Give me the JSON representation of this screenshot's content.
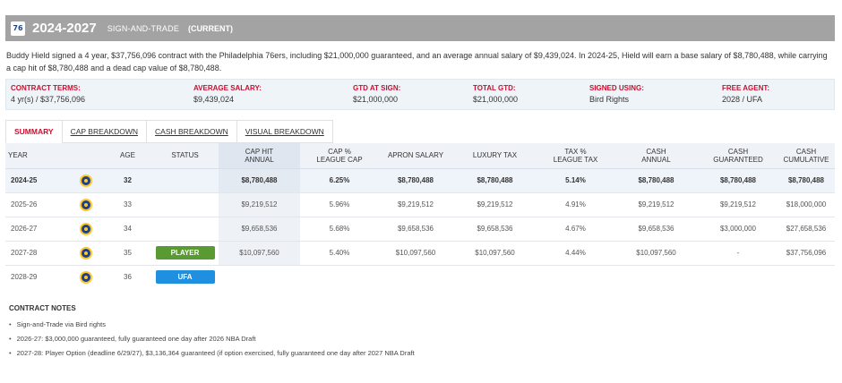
{
  "header": {
    "team_logo_text": "76",
    "years": "2024-2027",
    "type": "SIGN-AND-TRADE",
    "status": "(CURRENT)",
    "colors": {
      "bar": "#a3a3a3",
      "accent": "#c8102e"
    }
  },
  "summary": "Buddy Hield signed a 4 year, $37,756,096 contract with the Philadelphia 76ers, including $21,000,000 guaranteed, and an average annual salary of $9,439,024. In 2024-25, Hield will earn a base salary of $8,780,488, while carrying a cap hit of $8,780,488 and a dead cap value of $8,780,488.",
  "terms": [
    {
      "label": "CONTRACT TERMS:",
      "value": "4 yr(s) / $37,756,096"
    },
    {
      "label": "AVERAGE SALARY:",
      "value": "$9,439,024"
    },
    {
      "label": "GTD AT SIGN:",
      "value": "$21,000,000"
    },
    {
      "label": "TOTAL GTD:",
      "value": "$21,000,000"
    },
    {
      "label": "SIGNED USING:",
      "value": "Bird Rights"
    },
    {
      "label": "FREE AGENT:",
      "value": "2028 / UFA"
    }
  ],
  "tabs": [
    "SUMMARY",
    "CAP BREAKDOWN",
    "CASH BREAKDOWN",
    "VISUAL BREAKDOWN"
  ],
  "table": {
    "headers": {
      "year": "YEAR",
      "age": "AGE",
      "status": "STATUS",
      "cap_hit_1": "CAP HIT",
      "cap_hit_2": "ANNUAL",
      "cap_pct_1": "CAP %",
      "cap_pct_2": "LEAGUE CAP",
      "apron": "APRON SALARY",
      "luxury": "LUXURY TAX",
      "tax_pct_1": "TAX %",
      "tax_pct_2": "LEAGUE TAX",
      "cash_annual_1": "CASH",
      "cash_annual_2": "ANNUAL",
      "cash_gtd_1": "CASH",
      "cash_gtd_2": "GUARANTEED",
      "cash_cum_1": "CASH",
      "cash_cum_2": "CUMULATIVE"
    },
    "rows": [
      {
        "year": "2024-25",
        "team_icon": "warriors-logo-icon",
        "age": "32",
        "status": "",
        "cap_hit": "$8,780,488",
        "cap_pct": "6.25%",
        "apron": "$8,780,488",
        "luxury": "$8,780,488",
        "tax_pct": "5.14%",
        "cash_annual": "$8,780,488",
        "cash_gtd": "$8,780,488",
        "cash_cum": "$8,780,488"
      },
      {
        "year": "2025-26",
        "team_icon": "warriors-logo-icon",
        "age": "33",
        "status": "",
        "cap_hit": "$9,219,512",
        "cap_pct": "5.96%",
        "apron": "$9,219,512",
        "luxury": "$9,219,512",
        "tax_pct": "4.91%",
        "cash_annual": "$9,219,512",
        "cash_gtd": "$9,219,512",
        "cash_cum": "$18,000,000"
      },
      {
        "year": "2026-27",
        "team_icon": "warriors-logo-icon",
        "age": "34",
        "status": "",
        "cap_hit": "$9,658,536",
        "cap_pct": "5.68%",
        "apron": "$9,658,536",
        "luxury": "$9,658,536",
        "tax_pct": "4.67%",
        "cash_annual": "$9,658,536",
        "cash_gtd": "$3,000,000",
        "cash_cum": "$27,658,536"
      },
      {
        "year": "2027-28",
        "team_icon": "warriors-logo-icon",
        "age": "35",
        "status": "PLAYER",
        "status_color": "#5a9a32",
        "cap_hit": "$10,097,560",
        "cap_pct": "5.40%",
        "apron": "$10,097,560",
        "luxury": "$10,097,560",
        "tax_pct": "4.44%",
        "cash_annual": "$10,097,560",
        "cash_gtd": "-",
        "cash_cum": "$37,756,096"
      },
      {
        "year": "2028-29",
        "team_icon": "warriors-logo-icon",
        "age": "36",
        "status": "UFA",
        "status_color": "#1f8fe0"
      }
    ]
  },
  "notes": {
    "title": "CONTRACT NOTES",
    "items": [
      "Sign-and-Trade via Bird rights",
      "2026-27: $3,000,000 guaranteed, fully guaranteed one day after 2026 NBA Draft",
      "2027-28: Player Option (deadline 6/29/27), $3,136,364 guaranteed (if option exercised, fully guaranteed one day after 2027 NBA Draft"
    ]
  }
}
